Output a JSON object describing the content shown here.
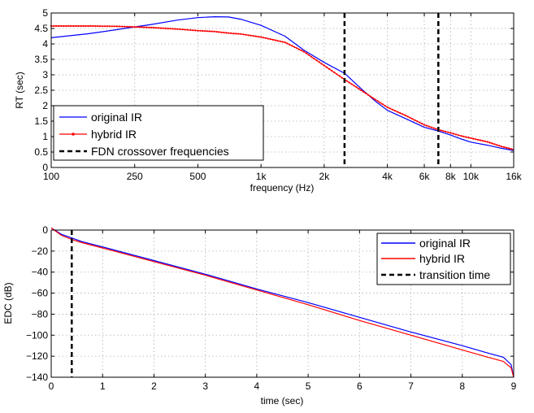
{
  "chart_data": [
    {
      "type": "line",
      "xlabel": "frequency (Hz)",
      "ylabel": "RT (sec)",
      "xscale": "log",
      "xlim": [
        100,
        16000
      ],
      "ylim": [
        0,
        5
      ],
      "xticks": [
        100,
        250,
        500,
        1000,
        2000,
        4000,
        6000,
        8000,
        10000,
        16000
      ],
      "xtick_labels": [
        "100",
        "250",
        "500",
        "1k",
        "2k",
        "4k",
        "6k",
        "8k",
        "10k",
        "16k"
      ],
      "yticks": [
        0,
        0.5,
        1,
        1.5,
        2,
        2.5,
        3,
        3.5,
        4,
        4.5,
        5
      ],
      "ytick_labels": [
        "0",
        "0.5",
        "1",
        "1.5",
        "2",
        "2.5",
        "3",
        "3.5",
        "4",
        "4.5",
        "5"
      ],
      "grid": true,
      "legend": "bottom-left",
      "series": [
        {
          "name": "original IR",
          "color": "#0000ff",
          "style": "solid",
          "x": [
            100,
            150,
            200,
            250,
            300,
            400,
            500,
            600,
            700,
            800,
            1000,
            1300,
            1600,
            2000,
            2500,
            3000,
            3500,
            4000,
            5000,
            6000,
            7000,
            8000,
            9000,
            10000,
            12000,
            14000,
            16000
          ],
          "y": [
            4.2,
            4.33,
            4.45,
            4.55,
            4.63,
            4.77,
            4.85,
            4.88,
            4.87,
            4.8,
            4.6,
            4.25,
            3.8,
            3.4,
            3.05,
            2.55,
            2.15,
            1.85,
            1.55,
            1.3,
            1.18,
            1.05,
            0.92,
            0.82,
            0.72,
            0.62,
            0.55
          ]
        },
        {
          "name": "hybrid IR",
          "color": "#ff0000",
          "style": "solid-dots",
          "x": [
            100,
            150,
            200,
            250,
            300,
            400,
            500,
            600,
            700,
            800,
            1000,
            1300,
            1600,
            2000,
            2500,
            3000,
            3500,
            4000,
            5000,
            6000,
            7000,
            8000,
            9000,
            10000,
            12000,
            14000,
            16000
          ],
          "y": [
            4.58,
            4.58,
            4.57,
            4.55,
            4.53,
            4.48,
            4.43,
            4.4,
            4.35,
            4.32,
            4.22,
            4.05,
            3.75,
            3.3,
            2.85,
            2.5,
            2.2,
            1.95,
            1.65,
            1.38,
            1.22,
            1.12,
            1.02,
            0.95,
            0.83,
            0.68,
            0.58
          ]
        },
        {
          "name": "FDN crossover frequencies",
          "color": "#000000",
          "style": "dashed-vertical",
          "x_values": [
            2500,
            7000
          ]
        }
      ]
    },
    {
      "type": "line",
      "xlabel": "time (sec)",
      "ylabel": "EDC (dB)",
      "xlim": [
        0,
        9
      ],
      "ylim": [
        -140,
        0
      ],
      "xticks": [
        0,
        1,
        2,
        3,
        4,
        5,
        6,
        7,
        8,
        9
      ],
      "xtick_labels": [
        "0",
        "1",
        "2",
        "3",
        "4",
        "5",
        "6",
        "7",
        "8",
        "9"
      ],
      "yticks": [
        -140,
        -120,
        -100,
        -80,
        -60,
        -40,
        -20,
        0
      ],
      "ytick_labels": [
        "−140",
        "−120",
        "−100",
        "−80",
        "−60",
        "−40",
        "−20",
        "0"
      ],
      "grid": true,
      "legend": "top-right",
      "series": [
        {
          "name": "original IR",
          "color": "#0000ff",
          "style": "solid",
          "x": [
            0,
            0.1,
            0.2,
            0.4,
            0.6,
            1,
            2,
            3,
            4,
            5,
            6,
            7,
            8,
            8.5,
            8.8,
            8.95,
            9
          ],
          "y": [
            2,
            -1,
            -4,
            -7.5,
            -11,
            -16,
            -29,
            -42,
            -56,
            -69,
            -83,
            -97,
            -110,
            -117,
            -121,
            -128,
            -140
          ]
        },
        {
          "name": "hybrid IR",
          "color": "#ff0000",
          "style": "solid",
          "x": [
            0,
            0.1,
            0.2,
            0.4,
            0.6,
            1,
            2,
            3,
            4,
            5,
            6,
            7,
            8,
            8.5,
            8.8,
            8.95,
            9
          ],
          "y": [
            2,
            -1.5,
            -5,
            -9,
            -12,
            -17,
            -30,
            -43,
            -57,
            -71,
            -86,
            -100,
            -114,
            -121,
            -125,
            -131,
            -140
          ]
        },
        {
          "name": "transition time",
          "color": "#000000",
          "style": "dashed-vertical",
          "x_values": [
            0.4
          ]
        }
      ]
    }
  ]
}
